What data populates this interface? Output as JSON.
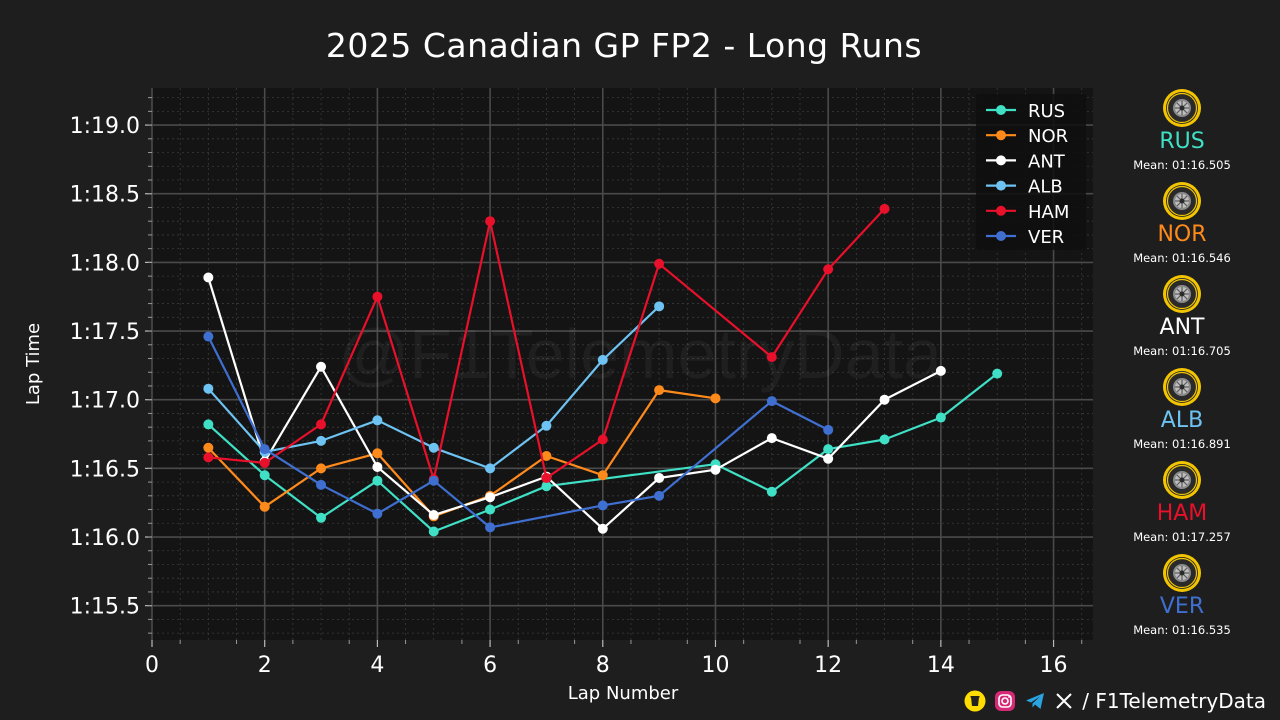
{
  "header": {
    "title": "2025 Canadian GP FP2 - Long Runs"
  },
  "watermark": "@F1TelemetryData",
  "footer": {
    "handle": "/ F1TelemetryData"
  },
  "drivers": [
    {
      "code": "RUS",
      "color": "#3fe0c5",
      "mean": "Mean: 01:16.505",
      "icon": "hard-tyre-icon"
    },
    {
      "code": "NOR",
      "color": "#ff8a1c",
      "mean": "Mean: 01:16.546",
      "icon": "hard-tyre-icon"
    },
    {
      "code": "ANT",
      "color": "#ffffff",
      "mean": "Mean: 01:16.705",
      "icon": "hard-tyre-icon"
    },
    {
      "code": "ALB",
      "color": "#6ec3f2",
      "mean": "Mean: 01:16.891",
      "icon": "hard-tyre-icon"
    },
    {
      "code": "HAM",
      "color": "#e8102a",
      "mean": "Mean: 01:17.257",
      "icon": "hard-tyre-icon"
    },
    {
      "code": "VER",
      "color": "#3f6fd0",
      "mean": "Mean: 01:16.535",
      "icon": "hard-tyre-icon"
    }
  ],
  "chart_data": {
    "type": "line",
    "title": "2025 Canadian GP FP2 - Long Runs",
    "xlabel": "Lap Number",
    "ylabel": "Lap Time",
    "xlim": [
      0,
      16.7
    ],
    "ylim": [
      75.25,
      79.27
    ],
    "xticks": [
      0,
      2,
      4,
      6,
      8,
      10,
      12,
      14,
      16
    ],
    "xtick_labels": [
      "0",
      "2",
      "4",
      "6",
      "8",
      "10",
      "12",
      "14",
      "16"
    ],
    "yticks": [
      75.5,
      76.0,
      76.5,
      77.0,
      77.5,
      78.0,
      78.5,
      79.0
    ],
    "ytick_labels": [
      "1:15.5",
      "1:16.0",
      "1:16.5",
      "1:17.0",
      "1:17.5",
      "1:18.0",
      "1:18.5",
      "1:19.0"
    ],
    "grid": true,
    "legend_position": "top-right",
    "series": [
      {
        "name": "RUS",
        "color": "#3fe0c5",
        "points": [
          [
            1,
            76.82
          ],
          [
            2,
            76.45
          ],
          [
            3,
            76.14
          ],
          [
            4,
            76.41
          ],
          [
            5,
            76.04
          ],
          [
            6,
            76.2
          ],
          [
            7,
            76.37
          ],
          [
            10,
            76.53
          ],
          [
            11,
            76.33
          ],
          [
            12,
            76.64
          ],
          [
            13,
            76.71
          ],
          [
            14,
            76.87
          ],
          [
            15,
            77.19
          ]
        ]
      },
      {
        "name": "NOR",
        "color": "#ff8a1c",
        "points": [
          [
            1,
            76.65
          ],
          [
            2,
            76.22
          ],
          [
            3,
            76.5
          ],
          [
            4,
            76.61
          ],
          [
            5,
            76.15
          ],
          [
            6,
            76.3
          ],
          [
            7,
            76.59
          ],
          [
            8,
            76.45
          ],
          [
            9,
            77.07
          ],
          [
            10,
            77.01
          ]
        ]
      },
      {
        "name": "ANT",
        "color": "#ffffff",
        "points": [
          [
            1,
            77.89
          ],
          [
            2,
            76.55
          ],
          [
            3,
            77.24
          ],
          [
            4,
            76.51
          ],
          [
            5,
            76.16
          ],
          [
            6,
            76.29
          ],
          [
            7,
            76.44
          ],
          [
            8,
            76.06
          ],
          [
            9,
            76.43
          ],
          [
            10,
            76.49
          ],
          [
            11,
            76.72
          ],
          [
            12,
            76.57
          ],
          [
            13,
            77.0
          ],
          [
            14,
            77.21
          ]
        ]
      },
      {
        "name": "ALB",
        "color": "#6ec3f2",
        "points": [
          [
            1,
            77.08
          ],
          [
            2,
            76.62
          ],
          [
            3,
            76.7
          ],
          [
            4,
            76.85
          ],
          [
            5,
            76.65
          ],
          [
            6,
            76.5
          ],
          [
            7,
            76.81
          ],
          [
            8,
            77.29
          ],
          [
            9,
            77.68
          ]
        ]
      },
      {
        "name": "HAM",
        "color": "#e8102a",
        "points": [
          [
            1,
            76.58
          ],
          [
            2,
            76.54
          ],
          [
            3,
            76.82
          ],
          [
            4,
            77.75
          ],
          [
            5,
            76.42
          ],
          [
            6,
            78.3
          ],
          [
            7,
            76.43
          ],
          [
            8,
            76.71
          ],
          [
            9,
            77.99
          ],
          [
            11,
            77.31
          ],
          [
            12,
            77.95
          ],
          [
            13,
            78.39
          ]
        ]
      },
      {
        "name": "VER",
        "color": "#3f6fd0",
        "points": [
          [
            1,
            77.46
          ],
          [
            2,
            76.64
          ],
          [
            3,
            76.38
          ],
          [
            4,
            76.17
          ],
          [
            5,
            76.41
          ],
          [
            6,
            76.07
          ],
          [
            8,
            76.23
          ],
          [
            9,
            76.3
          ],
          [
            11,
            76.99
          ],
          [
            12,
            76.78
          ]
        ]
      }
    ]
  }
}
